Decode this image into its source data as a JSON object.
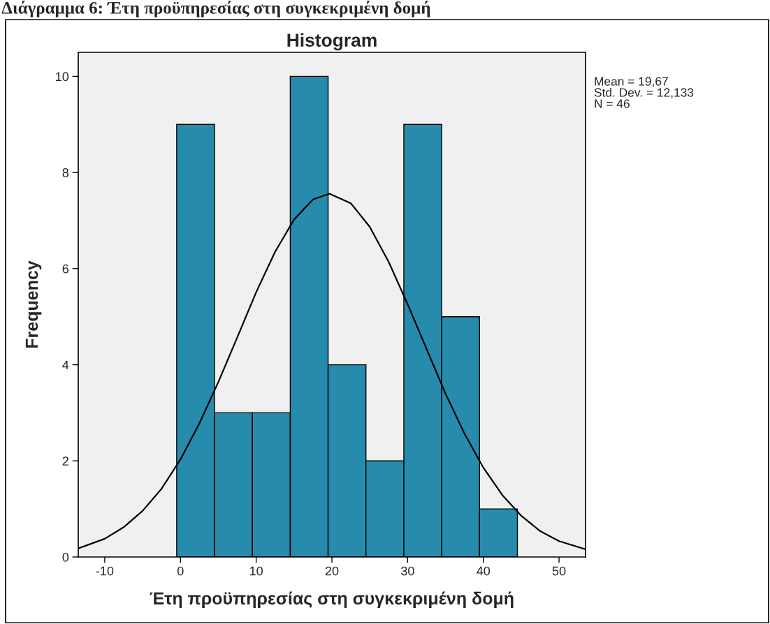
{
  "chart_data": {
    "type": "histogram",
    "title": "Histogram",
    "xlabel": "Έτη προϋπηρεσίας στη συγκεκριμένη δομή",
    "ylabel": "Frequency",
    "bins": [
      -0.5,
      4.5,
      9.5,
      14.5,
      19.5,
      24.5,
      29.5,
      34.5,
      39.5,
      44.5
    ],
    "values": [
      9,
      3,
      3,
      10,
      4,
      2,
      9,
      5,
      1
    ],
    "color": "#268bac",
    "series": [
      {
        "type": "line",
        "color": "#000000",
        "x": [
          -13.5,
          -10,
          -7.5,
          -5,
          -2.5,
          0,
          2.5,
          5,
          7.5,
          10,
          12.5,
          15,
          17.5,
          19.67,
          22.5,
          25,
          27.5,
          30,
          32.5,
          35,
          37.5,
          40,
          42.5,
          45,
          47.5,
          50,
          53.5
        ],
        "values": [
          0.18,
          0.38,
          0.62,
          0.96,
          1.42,
          2.03,
          2.78,
          3.64,
          4.57,
          5.51,
          6.35,
          7.02,
          7.44,
          7.56,
          7.36,
          6.87,
          6.14,
          5.26,
          4.33,
          3.4,
          2.57,
          1.86,
          1.29,
          0.86,
          0.54,
          0.33,
          0.16
        ]
      }
    ],
    "xlim": [
      -13.5,
      53.5
    ],
    "xticks": [
      -10,
      0,
      10,
      20,
      30,
      40,
      50
    ],
    "ylim": [
      0,
      10.5
    ],
    "yticks": [
      0,
      2,
      4,
      6,
      8,
      10
    ],
    "grid": false,
    "legend": false,
    "annotations": [
      "Διάγραμμα 6: Έτη προϋπηρεσίας στη συγκεκριμένη δομή",
      "Mean = 19,67",
      "Std. Dev. = 12,133",
      "N = 46"
    ]
  }
}
